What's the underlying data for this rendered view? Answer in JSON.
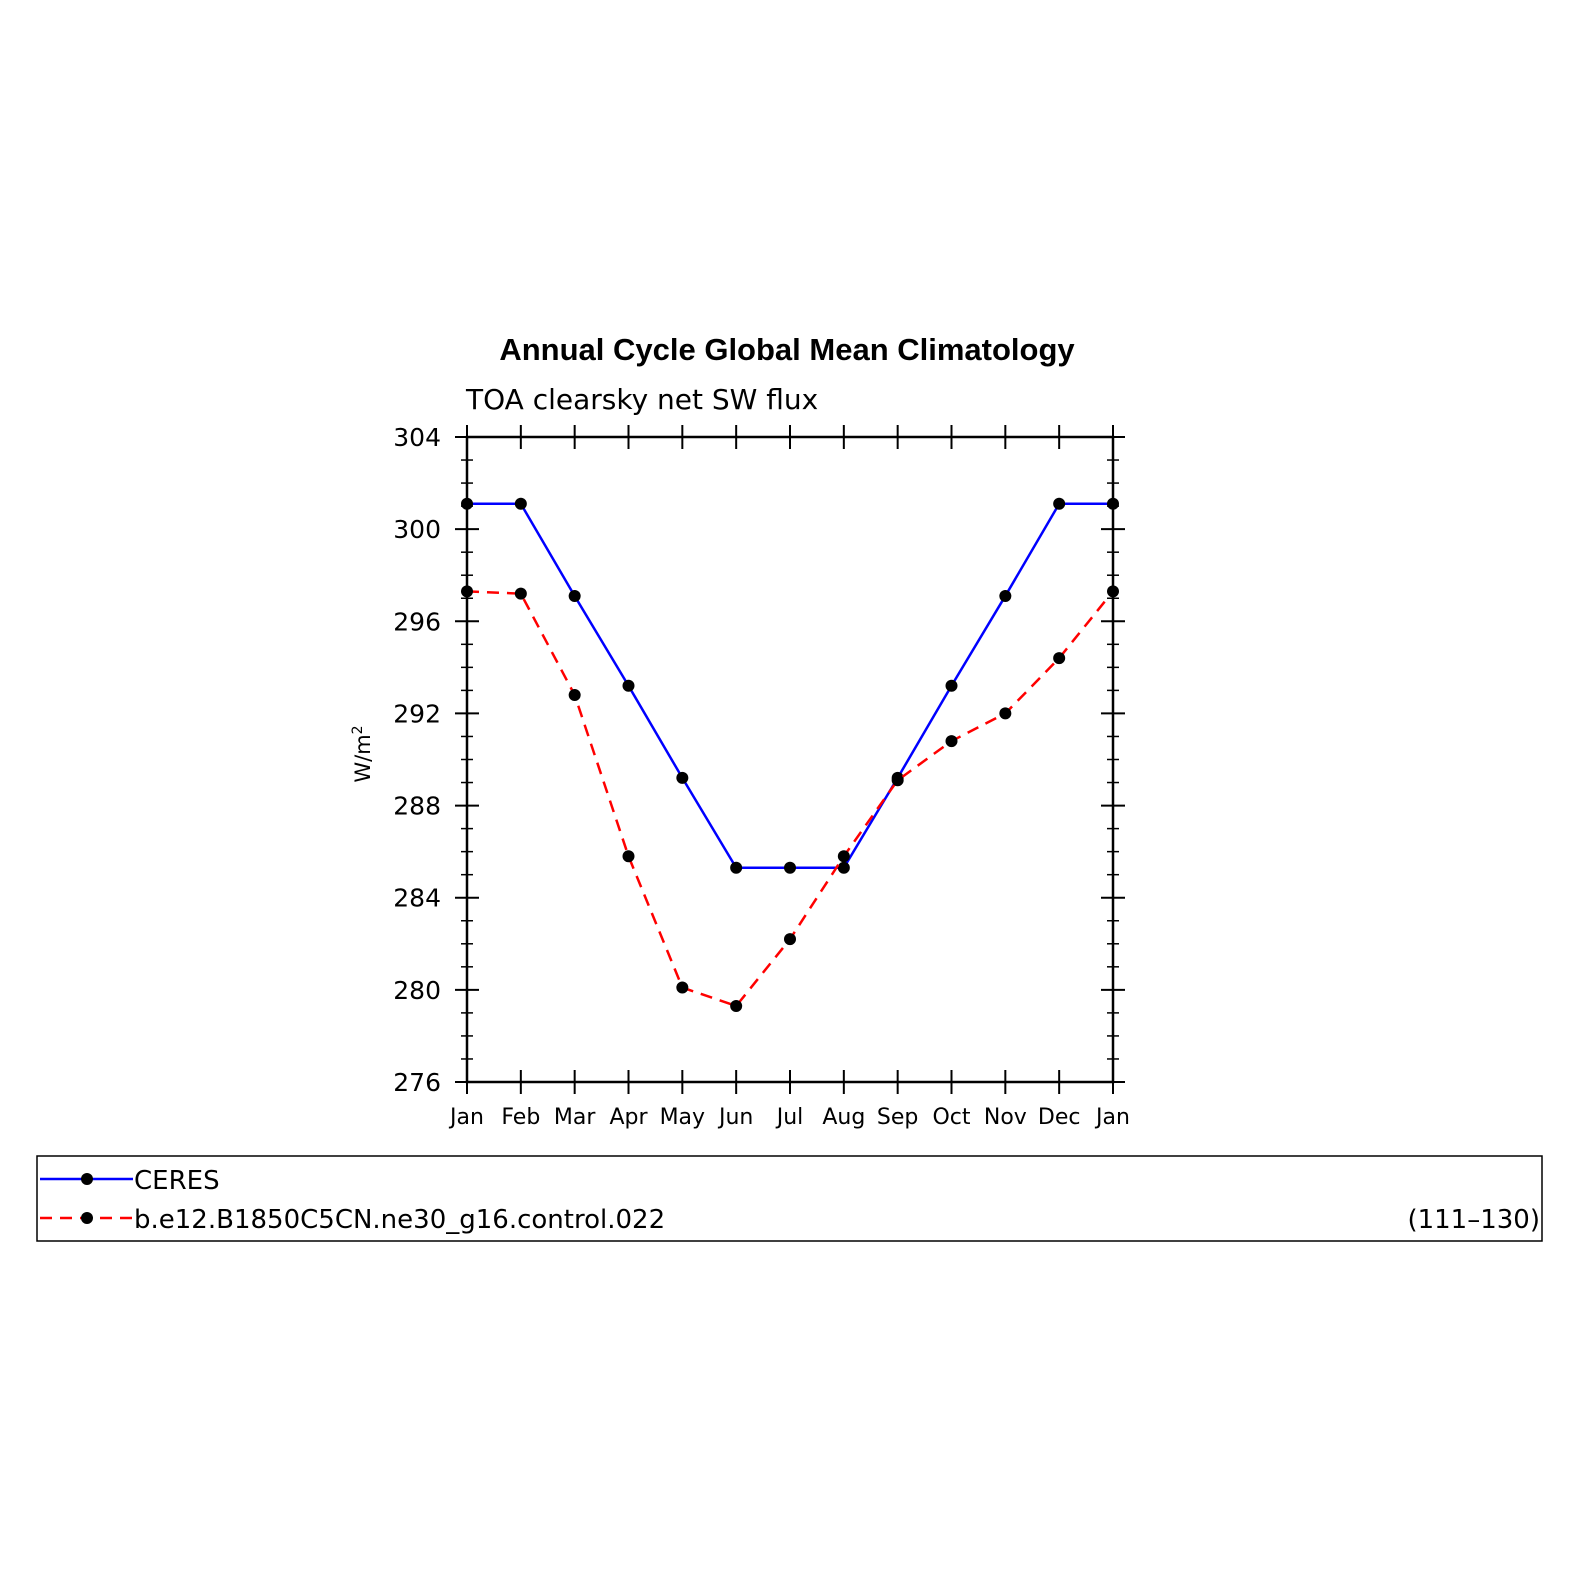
{
  "chart_data": {
    "type": "line",
    "title": "Annual Cycle Global Mean Climatology",
    "subtitle": "TOA clearsky net SW flux",
    "ylabel": "W/m",
    "ylabel_sup": "2",
    "ylim": [
      276,
      304
    ],
    "yticks": [
      "304",
      "300",
      "296",
      "292",
      "288",
      "284",
      "280",
      "276"
    ],
    "yticks_values": [
      304,
      300,
      296,
      292,
      288,
      284,
      280,
      276
    ],
    "categories": [
      "Jan",
      "Feb",
      "Mar",
      "Apr",
      "May",
      "Jun",
      "Jul",
      "Aug",
      "Sep",
      "Oct",
      "Nov",
      "Dec",
      "Jan"
    ],
    "grid": false,
    "legend_placement": "bottom",
    "legend_note": "(111–130)",
    "series": [
      {
        "name": "CERES",
        "color": "#0000ff",
        "dash": "solid",
        "values": [
          301.1,
          301.1,
          297.1,
          293.2,
          289.2,
          285.3,
          285.3,
          285.3,
          289.2,
          293.2,
          297.1,
          301.1,
          301.1
        ]
      },
      {
        "name": "b.e12.B1850C5CN.ne30_g16.control.022",
        "color": "#ff0000",
        "dash": "dashed",
        "values": [
          297.3,
          297.2,
          292.8,
          285.8,
          280.1,
          279.3,
          282.2,
          285.8,
          289.1,
          290.8,
          292.0,
          294.4,
          297.3
        ]
      }
    ]
  }
}
